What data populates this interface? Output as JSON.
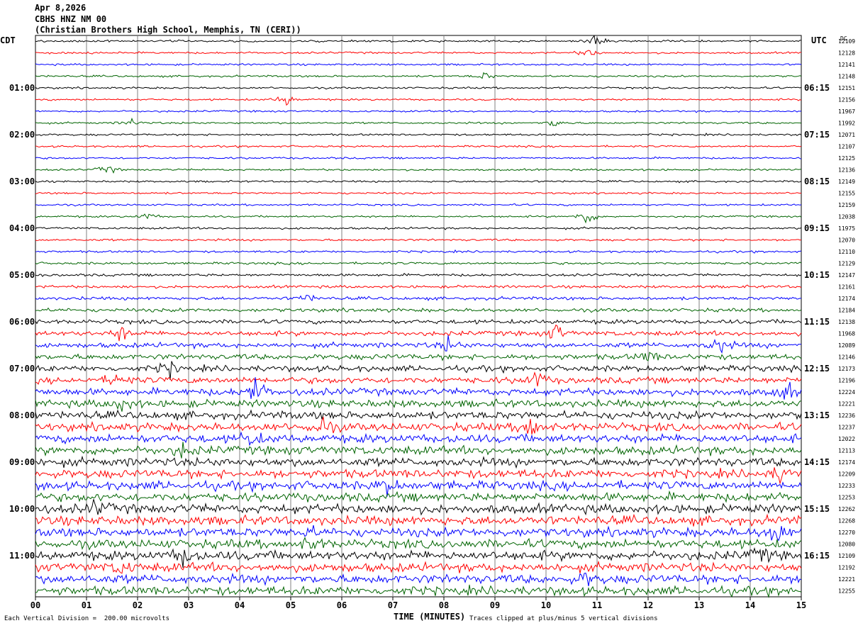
{
  "header": {
    "date": "Apr 8,2026",
    "station": "CBHS HNZ NM 00",
    "location": "(Christian Brothers High School, Memphis, TN (CERI))"
  },
  "labels": {
    "left_timezone": "CDT",
    "right_timezone": "UTC",
    "dc_header": "DC",
    "xlabel": "TIME (MINUTES)",
    "vertical_division": "Each Vertical Division =  200.00 microvolts",
    "clip_note": "Traces clipped at plus/minus 5 vertical divisions"
  },
  "colors": {
    "cycle": [
      "#000000",
      "#ff0000",
      "#0000ff",
      "#006400"
    ],
    "grid": "#808080"
  },
  "chart_data": {
    "type": "line",
    "plot_kind": "helicorder",
    "xlabel": "TIME (MINUTES)",
    "xlim": [
      0,
      15
    ],
    "x_ticks": [
      "00",
      "01",
      "02",
      "03",
      "04",
      "05",
      "06",
      "07",
      "08",
      "09",
      "10",
      "11",
      "12",
      "13",
      "14",
      "15"
    ],
    "row_count": 48,
    "minutes_per_row": 15,
    "grid": true,
    "left_time_labels": [
      {
        "row": 4,
        "text": "01:00"
      },
      {
        "row": 8,
        "text": "02:00"
      },
      {
        "row": 12,
        "text": "03:00"
      },
      {
        "row": 16,
        "text": "04:00"
      },
      {
        "row": 20,
        "text": "05:00"
      },
      {
        "row": 24,
        "text": "06:00"
      },
      {
        "row": 28,
        "text": "07:00"
      },
      {
        "row": 32,
        "text": "08:00"
      },
      {
        "row": 36,
        "text": "09:00"
      },
      {
        "row": 40,
        "text": "10:00"
      },
      {
        "row": 44,
        "text": "11:00"
      }
    ],
    "right_time_labels": [
      {
        "row": 4,
        "text": "06:15"
      },
      {
        "row": 8,
        "text": "07:15"
      },
      {
        "row": 12,
        "text": "08:15"
      },
      {
        "row": 16,
        "text": "09:15"
      },
      {
        "row": 20,
        "text": "10:15"
      },
      {
        "row": 24,
        "text": "11:15"
      },
      {
        "row": 28,
        "text": "12:15"
      },
      {
        "row": 32,
        "text": "13:15"
      },
      {
        "row": 36,
        "text": "14:15"
      },
      {
        "row": 40,
        "text": "15:15"
      },
      {
        "row": 44,
        "text": "16:15"
      }
    ],
    "dc_values": [
      "12109",
      "12128",
      "12141",
      "12148",
      "12151",
      "12156",
      "11967",
      "11992",
      "12071",
      "12107",
      "12125",
      "12136",
      "12149",
      "12155",
      "12159",
      "12038",
      "11975",
      "12070",
      "12110",
      "12129",
      "12147",
      "12161",
      "12174",
      "12184",
      "12138",
      "11968",
      "12089",
      "12146",
      "12173",
      "12196",
      "12224",
      "12221",
      "12236",
      "12237",
      "12022",
      "12113",
      "12174",
      "12209",
      "12233",
      "12253",
      "12262",
      "12268",
      "12270",
      "12080",
      "12109",
      "12192",
      "12221",
      "12255"
    ],
    "noise_amplitude": [
      0.9,
      0.9,
      0.9,
      0.9,
      0.9,
      0.9,
      0.9,
      0.9,
      0.9,
      0.9,
      0.9,
      0.9,
      0.9,
      0.9,
      0.9,
      0.9,
      1.0,
      1.0,
      1.0,
      1.1,
      1.2,
      1.3,
      1.5,
      1.7,
      2.0,
      2.2,
      2.4,
      2.6,
      2.8,
      3.0,
      3.3,
      3.5,
      3.7,
      3.8,
      3.9,
      4.0,
      4.0,
      4.0,
      4.1,
      4.1,
      4.3,
      4.3,
      4.2,
      4.2,
      4.3,
      4.2,
      4.2,
      4.1
    ],
    "events": [
      {
        "row": 0,
        "minute": 10.95,
        "amp": 6
      },
      {
        "row": 1,
        "minute": 10.82,
        "amp": 5
      },
      {
        "row": 3,
        "minute": 8.8,
        "amp": 4
      },
      {
        "row": 5,
        "minute": 4.9,
        "amp": 7
      },
      {
        "row": 7,
        "minute": 1.9,
        "amp": 4
      },
      {
        "row": 7,
        "minute": 10.2,
        "amp": 6
      },
      {
        "row": 11,
        "minute": 1.4,
        "amp": 5
      },
      {
        "row": 15,
        "minute": 2.2,
        "amp": 4
      },
      {
        "row": 15,
        "minute": 10.8,
        "amp": 10
      },
      {
        "row": 22,
        "minute": 5.3,
        "amp": 5
      },
      {
        "row": 25,
        "minute": 1.7,
        "amp": 9
      },
      {
        "row": 25,
        "minute": 10.2,
        "amp": 10
      },
      {
        "row": 26,
        "minute": 8.1,
        "amp": 8
      },
      {
        "row": 26,
        "minute": 13.4,
        "amp": 10
      },
      {
        "row": 27,
        "minute": 12.0,
        "amp": 7
      },
      {
        "row": 28,
        "minute": 2.6,
        "amp": 9
      },
      {
        "row": 29,
        "minute": 1.6,
        "amp": 8
      },
      {
        "row": 29,
        "minute": 9.8,
        "amp": 10
      },
      {
        "row": 30,
        "minute": 4.3,
        "amp": 14
      },
      {
        "row": 30,
        "minute": 14.7,
        "amp": 9
      },
      {
        "row": 31,
        "minute": 1.7,
        "amp": 9
      },
      {
        "row": 33,
        "minute": 5.6,
        "amp": 12
      },
      {
        "row": 33,
        "minute": 9.7,
        "amp": 16
      },
      {
        "row": 34,
        "minute": 4.2,
        "amp": 9
      },
      {
        "row": 35,
        "minute": 2.9,
        "amp": 7
      },
      {
        "row": 37,
        "minute": 14.6,
        "amp": 8
      },
      {
        "row": 38,
        "minute": 6.9,
        "amp": 7
      },
      {
        "row": 40,
        "minute": 1.2,
        "amp": 8
      },
      {
        "row": 42,
        "minute": 14.5,
        "amp": 14
      },
      {
        "row": 42,
        "minute": 5.3,
        "amp": 6
      },
      {
        "row": 43,
        "minute": 5.4,
        "amp": 7
      },
      {
        "row": 44,
        "minute": 2.9,
        "amp": 10
      },
      {
        "row": 44,
        "minute": 14.2,
        "amp": 8
      },
      {
        "row": 45,
        "minute": 1.7,
        "amp": 8
      },
      {
        "row": 46,
        "minute": 10.8,
        "amp": 6
      }
    ]
  }
}
